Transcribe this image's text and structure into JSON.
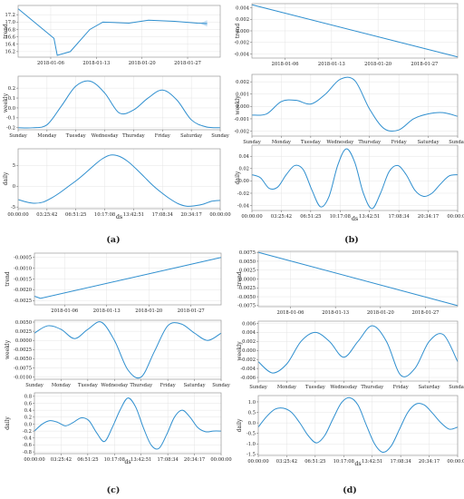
{
  "chart_data": [
    {
      "type": "line",
      "panel": "(a)",
      "title": "",
      "x_label": "ds",
      "subplots": [
        {
          "ylabel": "trend",
          "ylim": [
            16.05,
            17.45
          ],
          "yticks": [
            16.2,
            16.4,
            16.6,
            16.8,
            17.0,
            17.2
          ],
          "ytick_labels": [
            "16.2",
            "16.4",
            "16.6",
            "16.8",
            "17.0",
            "17.2"
          ],
          "xlim": [
            0,
            31
          ],
          "xticks": [
            5,
            12,
            19,
            26
          ],
          "xtick_labels": [
            "2018-01-06",
            "2018-01-13",
            "2018-01-20",
            "2018-01-27"
          ],
          "x": [
            0,
            5.5,
            6,
            8,
            11,
            13,
            17,
            20,
            24,
            27.5,
            29
          ],
          "y": [
            17.36,
            16.56,
            16.1,
            16.2,
            16.8,
            17.0,
            16.97,
            17.05,
            17.02,
            16.97,
            16.96
          ],
          "uncertainty_band": {
            "x": [
              28,
              29
            ],
            "y_lower": [
              16.96,
              16.88
            ],
            "y_upper": [
              16.97,
              17.05
            ]
          }
        },
        {
          "ylabel": "weekly",
          "ylim": [
            -0.22,
            0.32
          ],
          "yticks": [
            -0.2,
            -0.1,
            0.0,
            0.1,
            0.2
          ],
          "ytick_labels": [
            "-0.2",
            "-0.1",
            "0.0",
            "0.1",
            "0.2"
          ],
          "xlim": [
            0,
            7
          ],
          "xticks": [
            0,
            1,
            2,
            3,
            4,
            5,
            6,
            7
          ],
          "xtick_labels": [
            "Sunday",
            "Monday",
            "Tuesday",
            "Wednesday",
            "Thursday",
            "Friday",
            "Saturday",
            "Sunday"
          ],
          "x": [
            0,
            0.5,
            1,
            1.5,
            2,
            2.5,
            3,
            3.5,
            4,
            4.5,
            5,
            5.5,
            6,
            6.5,
            7
          ],
          "y": [
            -0.2,
            -0.2,
            -0.17,
            0.02,
            0.22,
            0.27,
            0.15,
            -0.05,
            -0.02,
            0.1,
            0.18,
            0.08,
            -0.12,
            -0.19,
            -0.2
          ]
        },
        {
          "ylabel": "daily",
          "ylim": [
            -5.4,
            9
          ],
          "yticks": [
            -5,
            0,
            5
          ],
          "ytick_labels": [
            "-5",
            "0",
            "5"
          ],
          "xlim": [
            0,
            24
          ],
          "xticks": [
            0,
            3.4283,
            6.8569,
            10.2856,
            13.7142,
            17.1428,
            20.5714,
            24
          ],
          "xtick_labels": [
            "00:00:00",
            "03:25:42",
            "06:51:25",
            "10:17:08",
            "13:42:51",
            "17:08:34",
            "20:34:17",
            "00:00:00"
          ],
          "x": [
            0,
            1,
            2,
            3,
            4,
            5,
            6,
            7,
            8,
            9,
            10,
            11,
            12,
            13,
            14,
            15,
            16,
            17,
            18,
            19,
            20,
            21,
            22,
            23,
            24
          ],
          "y": [
            -3.2,
            -3.8,
            -4.1,
            -3.8,
            -2.8,
            -1.5,
            0,
            1.5,
            3.2,
            5.0,
            6.6,
            7.5,
            7.2,
            6.0,
            4.2,
            2.2,
            0.2,
            -1.5,
            -3,
            -4.2,
            -4.8,
            -4.7,
            -4.3,
            -3.6,
            -3.4
          ]
        }
      ]
    },
    {
      "type": "line",
      "panel": "(b)",
      "title": "",
      "x_label": "ds",
      "subplots": [
        {
          "ylabel": "trend",
          "ylim": [
            -0.0047,
            0.0047
          ],
          "yticks": [
            -0.004,
            -0.002,
            0.0,
            0.002,
            0.004
          ],
          "ytick_labels": [
            "-0.004",
            "-0.002",
            "0.000",
            "0.002",
            "0.004"
          ],
          "xlim": [
            0,
            31
          ],
          "xticks": [
            5,
            12,
            19,
            26
          ],
          "xtick_labels": [
            "2018-01-06",
            "2018-01-13",
            "2018-01-20",
            "2018-01-27"
          ],
          "x": [
            0,
            31
          ],
          "y": [
            0.0045,
            -0.0045
          ]
        },
        {
          "ylabel": "weekly",
          "ylim": [
            -0.0024,
            0.0026
          ],
          "yticks": [
            -0.002,
            -0.001,
            0.0,
            0.001,
            0.002
          ],
          "ytick_labels": [
            "-0.002",
            "-0.001",
            "0.000",
            "0.001",
            "0.002"
          ],
          "xlim": [
            0,
            7
          ],
          "xticks": [
            0,
            1,
            2,
            3,
            4,
            5,
            6,
            7
          ],
          "xtick_labels": [
            "Sunday",
            "Monday",
            "Tuesday",
            "Wednesday",
            "Thursday",
            "Friday",
            "Saturday",
            "Sunday"
          ],
          "x": [
            0,
            0.5,
            1,
            1.5,
            2,
            2.5,
            3,
            3.5,
            4,
            4.5,
            5,
            5.5,
            6,
            6.5,
            7
          ],
          "y": [
            -0.0007,
            -0.0006,
            0.0004,
            0.0005,
            0.0002,
            0.001,
            0.0022,
            0.0021,
            -0.0002,
            -0.0018,
            -0.0019,
            -0.001,
            -0.0006,
            -0.0005,
            -0.0008
          ]
        },
        {
          "ylabel": "daily",
          "ylim": [
            -0.048,
            0.058
          ],
          "yticks": [
            -0.04,
            -0.02,
            0.0,
            0.02,
            0.04
          ],
          "ytick_labels": [
            "-0.04",
            "-0.02",
            "0.00",
            "0.02",
            "0.04"
          ],
          "xlim": [
            0,
            24
          ],
          "xticks": [
            0,
            3.4283,
            6.8569,
            10.2856,
            13.7142,
            17.1428,
            20.5714,
            24
          ],
          "xtick_labels": [
            "00:00:00",
            "03:25:42",
            "06:51:25",
            "10:17:08",
            "13:42:51",
            "17:08:34",
            "20:34:17",
            "00:00:00"
          ],
          "x": [
            0,
            1,
            2,
            3,
            4,
            5,
            6,
            7,
            8,
            9,
            10,
            11,
            12,
            13,
            14,
            15,
            16,
            17,
            18,
            19,
            20,
            21,
            22,
            23,
            24
          ],
          "y": [
            0.01,
            0.005,
            -0.012,
            -0.01,
            0.01,
            0.025,
            0.018,
            -0.015,
            -0.042,
            -0.025,
            0.025,
            0.052,
            0.03,
            -0.02,
            -0.045,
            -0.02,
            0.015,
            0.025,
            0.01,
            -0.015,
            -0.025,
            -0.02,
            -0.005,
            0.008,
            0.01
          ]
        }
      ]
    },
    {
      "type": "line",
      "panel": "(c)",
      "title": "",
      "x_label": "ds",
      "subplots": [
        {
          "ylabel": "trend",
          "ylim": [
            -0.0027,
            -0.0003
          ],
          "yticks": [
            -0.0025,
            -0.002,
            -0.0015,
            -0.001,
            -0.0005
          ],
          "ytick_labels": [
            "-0.0025",
            "-0.0020",
            "-0.0015",
            "-0.0010",
            "-0.0005"
          ],
          "xlim": [
            0,
            31
          ],
          "xticks": [
            5,
            12,
            19,
            26
          ],
          "xtick_labels": [
            "2018-01-06",
            "2018-01-13",
            "2018-01-20",
            "2018-01-27"
          ],
          "x": [
            0,
            1,
            31
          ],
          "y": [
            -0.0023,
            -0.0024,
            -0.0005
          ]
        },
        {
          "ylabel": "weekly",
          "ylim": [
            -0.0106,
            0.0055
          ],
          "yticks": [
            -0.01,
            -0.0075,
            -0.005,
            -0.0025,
            0.0,
            0.0025,
            0.005
          ],
          "ytick_labels": [
            "-0.0100",
            "-0.0075",
            "-0.0050",
            "-0.0025",
            "0.0000",
            "0.0025",
            "0.0050"
          ],
          "xlim": [
            0,
            7
          ],
          "xticks": [
            0,
            1,
            2,
            3,
            4,
            5,
            6,
            7
          ],
          "xtick_labels": [
            "Sunday",
            "Monday",
            "Tuesday",
            "Wednesday",
            "Thursday",
            "Friday",
            "Saturday",
            "Sunday"
          ],
          "x": [
            0,
            0.5,
            1,
            1.5,
            2,
            2.5,
            3,
            3.5,
            4,
            4.5,
            5,
            5.5,
            6,
            6.5,
            7
          ],
          "y": [
            0.002,
            0.004,
            0.003,
            0.0005,
            0.003,
            0.005,
            0.0,
            -0.008,
            -0.01,
            -0.003,
            0.004,
            0.0045,
            0.002,
            0.0,
            0.002
          ]
        },
        {
          "ylabel": "daily",
          "ylim": [
            -0.85,
            0.9
          ],
          "yticks": [
            -0.8,
            -0.6,
            -0.4,
            -0.2,
            0.0,
            0.2,
            0.4,
            0.6,
            0.8
          ],
          "ytick_labels": [
            "-0.8",
            "-0.6",
            "-0.4",
            "-0.2",
            "0.0",
            "0.2",
            "0.4",
            "0.6",
            "0.8"
          ],
          "xlim": [
            0,
            24
          ],
          "xticks": [
            0,
            3.4283,
            6.8569,
            10.2856,
            13.7142,
            17.1428,
            20.5714,
            24
          ],
          "xtick_labels": [
            "00:00:00",
            "03:25:42",
            "06:51:25",
            "10:17:08",
            "13:42:51",
            "17:08:34",
            "20:34:17",
            "00:00:00"
          ],
          "x": [
            0,
            1,
            2,
            3,
            4,
            5,
            6,
            7,
            8,
            9,
            10,
            11,
            12,
            13,
            14,
            15,
            16,
            17,
            18,
            19,
            20,
            21,
            22,
            23,
            24
          ],
          "y": [
            -0.2,
            0.0,
            0.1,
            0.05,
            -0.05,
            0.05,
            0.18,
            0.1,
            -0.25,
            -0.5,
            -0.1,
            0.4,
            0.75,
            0.5,
            -0.1,
            -0.6,
            -0.7,
            -0.3,
            0.2,
            0.4,
            0.2,
            -0.1,
            -0.22,
            -0.2,
            -0.2
          ]
        }
      ]
    },
    {
      "type": "line",
      "panel": "(d)",
      "title": "",
      "x_label": "ds",
      "subplots": [
        {
          "ylabel": "trend",
          "ylim": [
            -0.0078,
            0.0078
          ],
          "yticks": [
            -0.0075,
            -0.005,
            -0.0025,
            0.0,
            0.0025,
            0.005,
            0.0075
          ],
          "ytick_labels": [
            "-0.0075",
            "-0.0050",
            "-0.0025",
            "0.0000",
            "0.0025",
            "0.0050",
            "0.0075"
          ],
          "xlim": [
            0,
            31
          ],
          "xticks": [
            5,
            12,
            19,
            26
          ],
          "xtick_labels": [
            "2018-01-06",
            "2018-01-13",
            "2018-01-20",
            "2018-01-27"
          ],
          "x": [
            0,
            31
          ],
          "y": [
            0.0075,
            -0.0075
          ]
        },
        {
          "ylabel": "weekly",
          "ylim": [
            -0.0068,
            0.0065
          ],
          "yticks": [
            -0.006,
            -0.004,
            -0.002,
            0.0,
            0.002,
            0.004,
            0.006
          ],
          "ytick_labels": [
            "-0.006",
            "-0.004",
            "-0.002",
            "0.000",
            "0.002",
            "0.004",
            "0.006"
          ],
          "xlim": [
            0,
            7
          ],
          "xticks": [
            0,
            1,
            2,
            3,
            4,
            5,
            6,
            7
          ],
          "xtick_labels": [
            "Sunday",
            "Monday",
            "Tuesday",
            "Wednesday",
            "Thursday",
            "Friday",
            "Saturday",
            "Sunday"
          ],
          "x": [
            0,
            0.5,
            1,
            1.5,
            2,
            2.5,
            3,
            3.5,
            4,
            4.5,
            5,
            5.5,
            6,
            6.5,
            7
          ],
          "y": [
            -0.0025,
            -0.005,
            -0.003,
            0.002,
            0.004,
            0.002,
            -0.0015,
            0.002,
            0.0055,
            0.002,
            -0.0055,
            -0.004,
            0.002,
            0.0035,
            -0.0025
          ]
        },
        {
          "ylabel": "daily",
          "ylim": [
            -1.55,
            1.3
          ],
          "yticks": [
            -1.5,
            -1.0,
            -0.5,
            0.0,
            0.5,
            1.0
          ],
          "ytick_labels": [
            "-1.5",
            "-1.0",
            "-0.5",
            "0.0",
            "0.5",
            "1.0"
          ],
          "xlim": [
            0,
            24
          ],
          "xticks": [
            0,
            3.4283,
            6.8569,
            10.2856,
            13.7142,
            17.1428,
            20.5714,
            24
          ],
          "xtick_labels": [
            "00:00:00",
            "03:25:42",
            "06:51:25",
            "10:17:08",
            "13:42:51",
            "17:08:34",
            "20:34:17",
            "00:00:00"
          ],
          "x": [
            0,
            1,
            2,
            3,
            4,
            5,
            6,
            7,
            8,
            9,
            10,
            11,
            12,
            13,
            14,
            15,
            16,
            17,
            18,
            19,
            20,
            21,
            22,
            23,
            24
          ],
          "y": [
            -0.2,
            0.3,
            0.65,
            0.7,
            0.5,
            0.0,
            -0.6,
            -0.95,
            -0.6,
            0.2,
            0.95,
            1.2,
            0.85,
            -0.1,
            -1.0,
            -1.4,
            -1.1,
            -0.3,
            0.5,
            0.9,
            0.85,
            0.45,
            0.0,
            -0.3,
            -0.2
          ]
        }
      ]
    }
  ]
}
